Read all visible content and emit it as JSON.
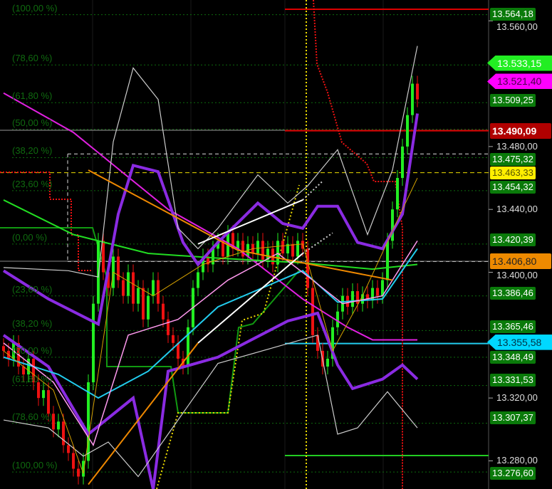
{
  "chart_data": {
    "type": "candlestick",
    "title": "",
    "y_axis": {
      "min": 13255,
      "max": 13573,
      "labels": [
        {
          "text": "13.560,00",
          "value": 13560
        },
        {
          "text": "13.480,00",
          "value": 13480
        },
        {
          "text": "13.440,00",
          "value": 13440
        },
        {
          "text": "13.400,00",
          "value": 13400
        },
        {
          "text": "13.320,00",
          "value": 13320
        },
        {
          "text": "13.280,00",
          "value": 13280
        }
      ]
    },
    "price_tags": [
      {
        "text": "13.564,18",
        "value": 13564.18,
        "bg": "#0a7a0a",
        "fg": "#ffffff"
      },
      {
        "text": "13.533,15",
        "value": 13533.15,
        "bg": "#22ee22",
        "fg": "#ffffff"
      },
      {
        "text": "13.521,40",
        "value": 13521.4,
        "bg": "#ff00ff",
        "fg": "#4a004a"
      },
      {
        "text": "13.509,25",
        "value": 13509.25,
        "bg": "#0a7a0a",
        "fg": "#ffffff"
      },
      {
        "text": "13.490,09",
        "value": 13490.09,
        "bg": "#b00000",
        "fg": "#ffffff"
      },
      {
        "text": "13.475,32",
        "value": 13475.32,
        "bg": "#0a7a0a",
        "fg": "#ffffff"
      },
      {
        "text": "13.463,33",
        "value": 13463.33,
        "bg": "#ffee00",
        "fg": "#555500"
      },
      {
        "text": "13.454,32",
        "value": 13454.32,
        "bg": "#0a7a0a",
        "fg": "#ffffff"
      },
      {
        "text": "13.420,39",
        "value": 13420.39,
        "bg": "#0a7a0a",
        "fg": "#ffffff"
      },
      {
        "text": "13.406,80",
        "value": 13406.8,
        "bg": "#ee8a00",
        "fg": "#222222"
      },
      {
        "text": "13.386,46",
        "value": 13386.46,
        "bg": "#0a7a0a",
        "fg": "#ffffff"
      },
      {
        "text": "13.365,46",
        "value": 13365.46,
        "bg": "#0a7a0a",
        "fg": "#ffffff"
      },
      {
        "text": "13.348,49",
        "value": 13348.49,
        "bg": "#0a7a0a",
        "fg": "#ffffff"
      },
      {
        "text": "13.355,58",
        "value": 13355.58,
        "bg": "#00d8ff",
        "fg": "#003344"
      },
      {
        "text": "13.331,53",
        "value": 13331.53,
        "bg": "#0a7a0a",
        "fg": "#ffffff"
      },
      {
        "text": "13.307,37",
        "value": 13307.37,
        "bg": "#0a7a0a",
        "fg": "#ffffff"
      },
      {
        "text": "13.276,60",
        "value": 13276.6,
        "bg": "#0a7a0a",
        "fg": "#ffffff"
      }
    ],
    "fib_levels_upper": [
      "(100,00 %)",
      "(78,60 %)",
      "(61,80 %)",
      "(50,00 %)",
      "(38,20 %)",
      "(23,60 %)",
      "(0,00 %)"
    ],
    "fib_levels_upper_prices": [
      13568,
      13536,
      13512,
      13495,
      13477,
      13456,
      13422
    ],
    "fib_levels_lower": [
      "(23,60 %)",
      "(38,20 %)",
      "(50,00 %)",
      "(61,80 %)",
      "(78,60 %)",
      "(100,00 %)"
    ],
    "fib_levels_lower_prices": [
      13389,
      13367,
      13350,
      13332,
      13308,
      13277
    ],
    "closes": [
      13350,
      13345,
      13355,
      13340,
      13335,
      13345,
      13330,
      13320,
      13325,
      13310,
      13300,
      13305,
      13290,
      13285,
      13275,
      13270,
      13280,
      13330,
      13380,
      13420,
      13400,
      13390,
      13410,
      13395,
      13385,
      13400,
      13380,
      13390,
      13370,
      13385,
      13395,
      13380,
      13370,
      13360,
      13355,
      13345,
      13340,
      13365,
      13390,
      13400,
      13410,
      13405,
      13415,
      13420,
      13410,
      13425,
      13415,
      13420,
      13410,
      13418,
      13412,
      13420,
      13408,
      13415,
      13405,
      13420,
      13412,
      13418,
      13410,
      13420,
      13415,
      13390,
      13360,
      13350,
      13340,
      13345,
      13365,
      13375,
      13385,
      13378,
      13388,
      13380,
      13386,
      13382,
      13390,
      13385,
      13395,
      13420,
      13440,
      13460,
      13480,
      13500,
      13520,
      13510
    ],
    "lines": [
      {
        "color": "#e020e0",
        "width": 2,
        "points": [
          [
            0,
            13514
          ],
          [
            14,
            13489
          ],
          [
            33,
            13440
          ],
          [
            47,
            13415
          ],
          [
            60,
            13383
          ],
          [
            69,
            13365
          ],
          [
            74,
            13357
          ],
          [
            83,
            13357
          ]
        ]
      },
      {
        "color": "#22dd22",
        "width": 2,
        "points": [
          [
            0,
            13446
          ],
          [
            14,
            13424
          ],
          [
            29,
            13412
          ],
          [
            43,
            13409
          ],
          [
            60,
            13406
          ],
          [
            74,
            13402
          ],
          [
            83,
            13405
          ]
        ]
      },
      {
        "color": "#8a2be2",
        "width": 4,
        "points": [
          [
            0,
            13401
          ],
          [
            9,
            13383
          ],
          [
            19,
            13367
          ],
          [
            23,
            13437
          ],
          [
            26,
            13468
          ],
          [
            31,
            13464
          ],
          [
            36,
            13419
          ],
          [
            39,
            13405
          ],
          [
            43,
            13419
          ],
          [
            51,
            13444
          ],
          [
            56,
            13431
          ],
          [
            60,
            13428
          ],
          [
            63,
            13442
          ],
          [
            67,
            13442
          ],
          [
            71,
            13419
          ],
          [
            76,
            13415
          ],
          [
            80,
            13437
          ],
          [
            83,
            13501
          ]
        ]
      },
      {
        "color": "#8a2be2",
        "width": 4,
        "points": [
          [
            0,
            13360
          ],
          [
            9,
            13340
          ],
          [
            17,
            13297
          ],
          [
            26,
            13320
          ],
          [
            30,
            13262
          ],
          [
            33,
            13337
          ],
          [
            43,
            13346
          ],
          [
            57,
            13369
          ],
          [
            63,
            13374
          ],
          [
            67,
            13341
          ],
          [
            70,
            13326
          ],
          [
            76,
            13332
          ],
          [
            80,
            13341
          ],
          [
            83,
            13332
          ]
        ]
      },
      {
        "color": "#cccccc",
        "width": 1.2,
        "points": [
          [
            0,
            13403
          ],
          [
            13,
            13401
          ],
          [
            19,
            13397
          ],
          [
            22,
            13483
          ],
          [
            26,
            13530
          ],
          [
            31,
            13510
          ],
          [
            35,
            13428
          ],
          [
            39,
            13415
          ],
          [
            43,
            13428
          ],
          [
            51,
            13462
          ],
          [
            57,
            13444
          ],
          [
            61,
            13455
          ],
          [
            67,
            13478
          ],
          [
            73,
            13424
          ],
          [
            78,
            13465
          ],
          [
            83,
            13544
          ]
        ]
      },
      {
        "color": "#cccccc",
        "width": 1.2,
        "points": [
          [
            0,
            13306
          ],
          [
            9,
            13301
          ],
          [
            16,
            13283
          ],
          [
            21,
            13292
          ],
          [
            27,
            13270
          ],
          [
            43,
            13342
          ],
          [
            63,
            13360
          ],
          [
            67,
            13297
          ],
          [
            71,
            13301
          ],
          [
            77,
            13324
          ],
          [
            83,
            13301
          ]
        ]
      },
      {
        "color": "#22ccee",
        "width": 2,
        "points": [
          [
            0,
            13346
          ],
          [
            11,
            13335
          ],
          [
            19,
            13320
          ],
          [
            29,
            13337
          ],
          [
            43,
            13378
          ],
          [
            60,
            13401
          ],
          [
            67,
            13381
          ],
          [
            76,
            13383
          ],
          [
            83,
            13415
          ]
        ]
      },
      {
        "color": "#ff99ee",
        "width": 1.5,
        "points": [
          [
            0,
            13355
          ],
          [
            10,
            13330
          ],
          [
            18,
            13290
          ],
          [
            25,
            13360
          ],
          [
            35,
            13370
          ],
          [
            45,
            13395
          ],
          [
            55,
            13412
          ],
          [
            62,
            13395
          ],
          [
            68,
            13380
          ],
          [
            76,
            13385
          ],
          [
            83,
            13420
          ]
        ]
      },
      {
        "color": "#d4a000",
        "width": 1,
        "points": [
          [
            0,
            13350
          ],
          [
            10,
            13325
          ],
          [
            16,
            13272
          ],
          [
            22,
            13400
          ],
          [
            30,
            13385
          ],
          [
            40,
            13405
          ],
          [
            50,
            13415
          ],
          [
            60,
            13418
          ],
          [
            66,
            13350
          ],
          [
            72,
            13385
          ],
          [
            80,
            13440
          ],
          [
            83,
            13460
          ]
        ]
      }
    ],
    "trendlines": [
      {
        "color": "#ee8800",
        "points": [
          [
            17,
            13465
          ],
          [
            47,
            13414
          ],
          [
            78,
            13395
          ]
        ]
      },
      {
        "color": "#ee8800",
        "points": [
          [
            17,
            13265
          ],
          [
            39,
            13355
          ]
        ]
      },
      {
        "color": "#ffffff",
        "points": [
          [
            39,
            13418
          ],
          [
            60,
            13446
          ]
        ]
      },
      {
        "color": "#ffffff",
        "points": [
          [
            39,
            13355
          ],
          [
            60,
            13412
          ]
        ]
      }
    ]
  }
}
